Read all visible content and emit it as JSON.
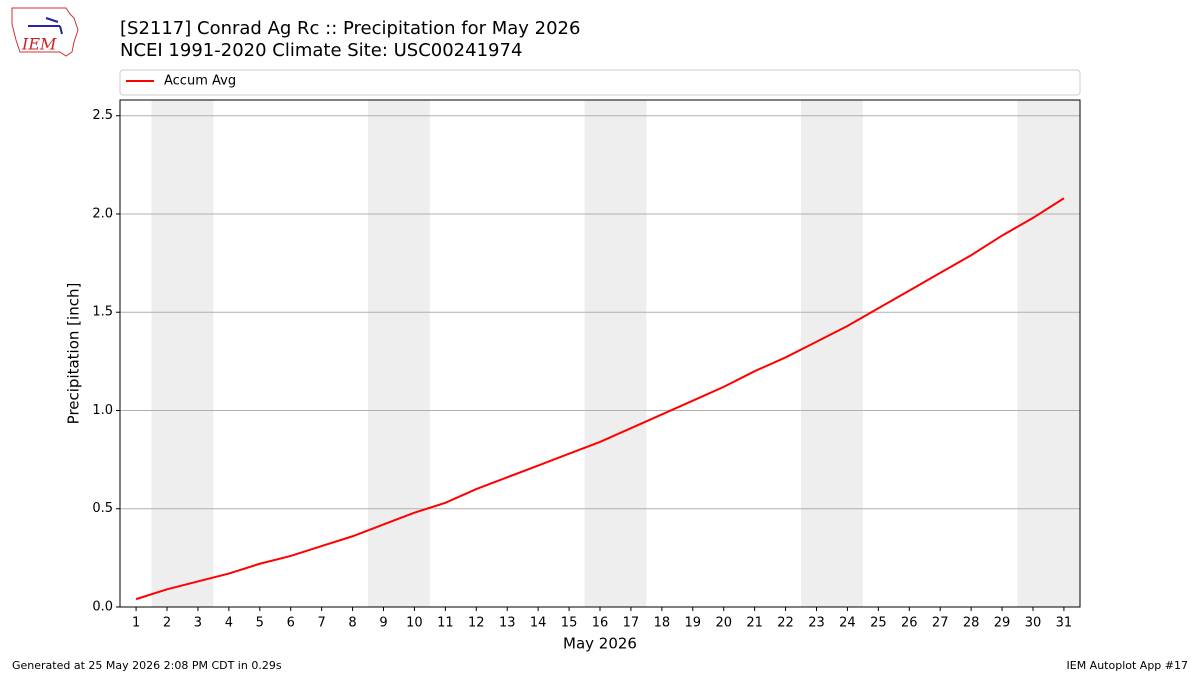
{
  "logo": "IEM",
  "footer": {
    "left": "Generated at 25 May 2026 2:08 PM CDT in 0.29s",
    "right": "IEM Autoplot App #17"
  },
  "chart_data": {
    "type": "line",
    "title": "[S2117] Conrad Ag Rc :: Precipitation for May 2026",
    "subtitle": "NCEI 1991-2020 Climate Site: USC00241974",
    "xlabel": "May 2026",
    "ylabel": "Precipitation [inch]",
    "x": [
      1,
      2,
      3,
      4,
      5,
      6,
      7,
      8,
      9,
      10,
      11,
      12,
      13,
      14,
      15,
      16,
      17,
      18,
      19,
      20,
      21,
      22,
      23,
      24,
      25,
      26,
      27,
      28,
      29,
      30,
      31
    ],
    "series": [
      {
        "name": "Accum Avg",
        "color": "#ff0000",
        "values": [
          0.04,
          0.09,
          0.13,
          0.17,
          0.22,
          0.26,
          0.31,
          0.36,
          0.42,
          0.48,
          0.53,
          0.6,
          0.66,
          0.72,
          0.78,
          0.84,
          0.91,
          0.98,
          1.05,
          1.12,
          1.2,
          1.27,
          1.35,
          1.43,
          1.52,
          1.61,
          1.7,
          1.79,
          1.89,
          1.98,
          2.08
        ]
      }
    ],
    "xlim": [
      0.48,
      31.52
    ],
    "ylim": [
      0,
      2.58
    ],
    "xticks": [
      1,
      2,
      3,
      4,
      5,
      6,
      7,
      8,
      9,
      10,
      11,
      12,
      13,
      14,
      15,
      16,
      17,
      18,
      19,
      20,
      21,
      22,
      23,
      24,
      25,
      26,
      27,
      28,
      29,
      30,
      31
    ],
    "yticks": [
      {
        "value": 0,
        "label": "0.0"
      },
      0.5,
      {
        "value": 1,
        "label": "1.0"
      },
      1.5,
      {
        "value": 2,
        "label": "2.0"
      },
      2.5
    ],
    "shaded_spans": [
      [
        1.5,
        3.5
      ],
      [
        8.5,
        10.5
      ],
      [
        15.5,
        17.5
      ],
      [
        22.5,
        24.5
      ],
      [
        29.5,
        31.5
      ]
    ],
    "shade_color": "#eeeeee",
    "grid": "y",
    "legend": "top"
  }
}
